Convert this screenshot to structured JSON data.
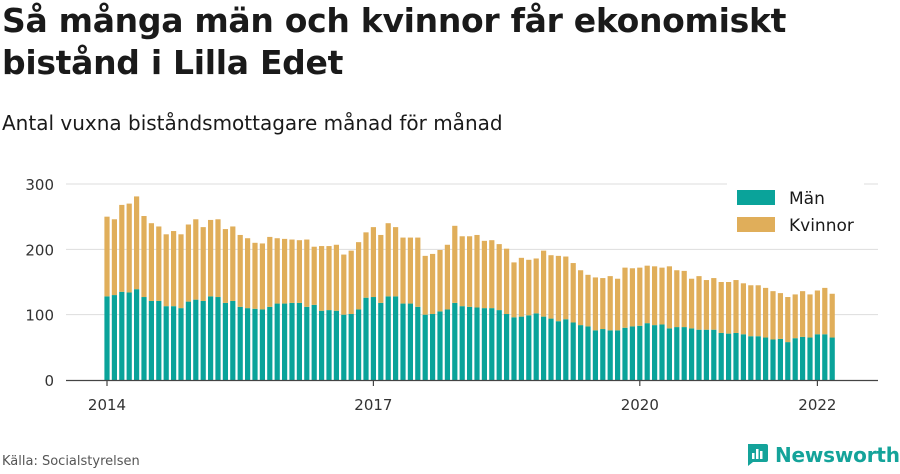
{
  "title": "Så många män och kvinnor får ekonomiskt bistånd i Lilla Edet",
  "subtitle": "Antal vuxna biståndsmottagare månad för månad",
  "source": "Källa: Socialstyrelsen",
  "brand": {
    "name": "Newsworthy",
    "icon": "newsworthy-logo-icon"
  },
  "colors": {
    "men": "#0aa39a",
    "women": "#e0ae5a",
    "grid": "#dddddd",
    "axis": "#444444"
  },
  "chart_data": {
    "type": "bar",
    "stacked": true,
    "legend_position": "top-right",
    "grid": true,
    "ylim": [
      0,
      300
    ],
    "y_ticks": [
      "0",
      "100",
      "200",
      "300"
    ],
    "x_ticks": [
      {
        "label": "2014",
        "month": "2014-01"
      },
      {
        "label": "2017",
        "month": "2017-01"
      },
      {
        "label": "2020",
        "month": "2020-01"
      },
      {
        "label": "2022",
        "month": "2022-01"
      }
    ],
    "categories": [
      "2014-01",
      "2014-02",
      "2014-03",
      "2014-04",
      "2014-05",
      "2014-06",
      "2014-07",
      "2014-08",
      "2014-09",
      "2014-10",
      "2014-11",
      "2014-12",
      "2015-01",
      "2015-02",
      "2015-03",
      "2015-04",
      "2015-05",
      "2015-06",
      "2015-07",
      "2015-08",
      "2015-09",
      "2015-10",
      "2015-11",
      "2015-12",
      "2016-01",
      "2016-02",
      "2016-03",
      "2016-04",
      "2016-05",
      "2016-06",
      "2016-07",
      "2016-08",
      "2016-09",
      "2016-10",
      "2016-11",
      "2016-12",
      "2017-01",
      "2017-02",
      "2017-03",
      "2017-04",
      "2017-05",
      "2017-06",
      "2017-07",
      "2017-08",
      "2017-09",
      "2017-10",
      "2017-11",
      "2017-12",
      "2018-01",
      "2018-02",
      "2018-03",
      "2018-04",
      "2018-05",
      "2018-06",
      "2018-07",
      "2018-08",
      "2018-09",
      "2018-10",
      "2018-11",
      "2018-12",
      "2019-01",
      "2019-02",
      "2019-03",
      "2019-04",
      "2019-05",
      "2019-06",
      "2019-07",
      "2019-08",
      "2019-09",
      "2019-10",
      "2019-11",
      "2019-12",
      "2020-01",
      "2020-02",
      "2020-03",
      "2020-04",
      "2020-05",
      "2020-06",
      "2020-07",
      "2020-08",
      "2020-09",
      "2020-10",
      "2020-11",
      "2020-12",
      "2021-01",
      "2021-02",
      "2021-03",
      "2021-04",
      "2021-05",
      "2021-06",
      "2021-07",
      "2021-08",
      "2021-09",
      "2021-10",
      "2021-11",
      "2021-12",
      "2022-01",
      "2022-02",
      "2022-03",
      "2022-04"
    ],
    "series": [
      {
        "name": "Män",
        "values": [
          128,
          130,
          135,
          134,
          139,
          127,
          121,
          121,
          113,
          113,
          110,
          120,
          123,
          121,
          128,
          127,
          118,
          121,
          112,
          110,
          109,
          108,
          112,
          117,
          117,
          118,
          118,
          112,
          115,
          106,
          107,
          106,
          100,
          101,
          108,
          126,
          127,
          118,
          128,
          128,
          117,
          117,
          112,
          100,
          101,
          105,
          108,
          118,
          113,
          112,
          111,
          110,
          110,
          107,
          101,
          96,
          97,
          99,
          102,
          97,
          94,
          90,
          93,
          88,
          84,
          82,
          76,
          78,
          76,
          76,
          80,
          82,
          83,
          87,
          84,
          85,
          79,
          81,
          81,
          79,
          77,
          77,
          77,
          72,
          71,
          72,
          70,
          67,
          67,
          65,
          62,
          63,
          58,
          64,
          66,
          65,
          70,
          70,
          65,
          0
        ],
        "color": "#0aa39a"
      },
      {
        "name": "Kvinnor",
        "values": [
          122,
          116,
          133,
          136,
          142,
          124,
          119,
          114,
          110,
          115,
          113,
          118,
          123,
          113,
          117,
          119,
          113,
          114,
          110,
          107,
          101,
          101,
          107,
          100,
          99,
          97,
          96,
          103,
          89,
          99,
          98,
          101,
          92,
          97,
          103,
          100,
          107,
          104,
          112,
          106,
          101,
          101,
          106,
          90,
          92,
          94,
          99,
          118,
          107,
          108,
          111,
          103,
          104,
          101,
          100,
          84,
          90,
          85,
          84,
          101,
          97,
          100,
          96,
          91,
          84,
          79,
          81,
          78,
          83,
          79,
          92,
          89,
          89,
          88,
          90,
          87,
          95,
          87,
          86,
          76,
          82,
          76,
          79,
          78,
          79,
          81,
          78,
          78,
          78,
          76,
          74,
          70,
          69,
          67,
          70,
          66,
          67,
          71,
          67,
          0
        ]
      }
    ]
  }
}
